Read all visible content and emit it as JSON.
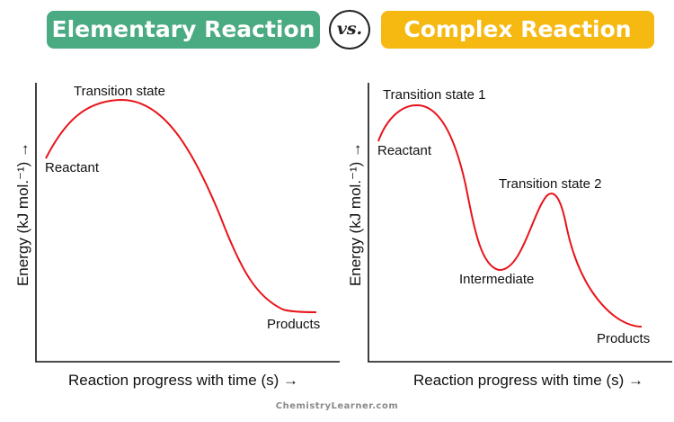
{
  "header": {
    "left_title": "Elementary Reaction",
    "vs": "vs.",
    "right_title": "Complex Reaction",
    "left_color": "#4aaa82",
    "right_color": "#f5b911"
  },
  "left_diagram": {
    "ylabel": "Energy (kJ mol.⁻¹) →",
    "xlabel": "Reaction progress with time (s) →",
    "labels": {
      "transition_state": "Transition state",
      "reactant": "Reactant",
      "products": "Products"
    }
  },
  "right_diagram": {
    "ylabel": "Energy (kJ mol.⁻¹) →",
    "xlabel": "Reaction progress with time (s) →",
    "labels": {
      "transition_state_1": "Transition state 1",
      "reactant": "Reactant",
      "transition_state_2": "Transition state 2",
      "intermediate": "Intermediate",
      "products": "Products"
    }
  },
  "curve_color": "#e8141a",
  "credit": "ChemistryLearner.com"
}
